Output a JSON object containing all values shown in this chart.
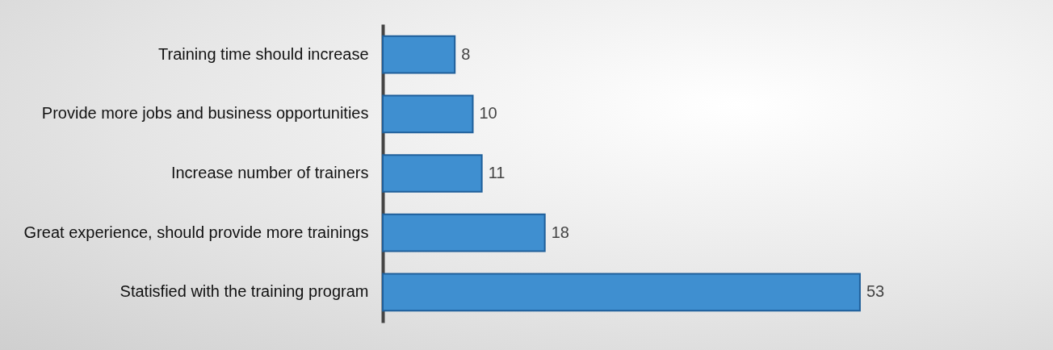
{
  "chart_data": {
    "type": "bar",
    "orientation": "horizontal",
    "data_labels": true,
    "categories": [
      "Training time should increase",
      "Provide more jobs and business opportunities",
      "Increase number of trainers",
      "Great experience, should provide more trainings",
      "Statisfied with the training program"
    ],
    "values": [
      8,
      10,
      11,
      18,
      53
    ],
    "color": "#3f8fd0"
  }
}
